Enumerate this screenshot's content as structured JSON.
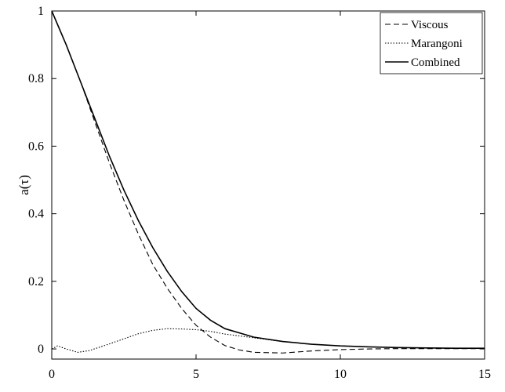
{
  "chart_data": {
    "type": "line",
    "title": "",
    "xlabel": "",
    "ylabel": "a(τ)",
    "xlim": [
      0,
      15
    ],
    "ylim": [
      -0.03,
      1.0
    ],
    "xticks": [
      "0",
      "5",
      "10",
      "15"
    ],
    "yticks": [
      "0",
      "0.2",
      "0.4",
      "0.6",
      "0.8",
      "1"
    ],
    "grid": false,
    "legend_position": "top-right",
    "series": [
      {
        "name": "Viscous",
        "style": "dashed",
        "color": "#000000",
        "points": [
          [
            0,
            1.0
          ],
          [
            0.5,
            0.9
          ],
          [
            1,
            0.79
          ],
          [
            1.5,
            0.67
          ],
          [
            2,
            0.55
          ],
          [
            2.5,
            0.44
          ],
          [
            3,
            0.34
          ],
          [
            3.5,
            0.25
          ],
          [
            4,
            0.18
          ],
          [
            4.5,
            0.12
          ],
          [
            5,
            0.07
          ],
          [
            5.5,
            0.035
          ],
          [
            6,
            0.01
          ],
          [
            6.5,
            -0.003
          ],
          [
            7,
            -0.01
          ],
          [
            8,
            -0.012
          ],
          [
            9,
            -0.006
          ],
          [
            10,
            -0.002
          ],
          [
            11,
            0.0
          ],
          [
            12,
            0.001
          ],
          [
            13,
            0.001
          ],
          [
            14,
            0.001
          ],
          [
            15,
            0.001
          ]
        ]
      },
      {
        "name": "Marangoni",
        "style": "dotted",
        "color": "#000000",
        "points": [
          [
            0,
            0.0
          ],
          [
            0.2,
            0.009
          ],
          [
            0.5,
            0.0
          ],
          [
            0.9,
            -0.01
          ],
          [
            1.3,
            -0.005
          ],
          [
            2,
            0.015
          ],
          [
            2.5,
            0.03
          ],
          [
            3,
            0.045
          ],
          [
            3.5,
            0.055
          ],
          [
            4,
            0.06
          ],
          [
            4.5,
            0.059
          ],
          [
            5,
            0.057
          ],
          [
            5.5,
            0.052
          ],
          [
            6,
            0.044
          ],
          [
            7,
            0.033
          ],
          [
            8,
            0.022
          ],
          [
            9,
            0.014
          ],
          [
            10,
            0.009
          ],
          [
            11,
            0.006
          ],
          [
            12,
            0.004
          ],
          [
            13,
            0.003
          ],
          [
            14,
            0.002
          ],
          [
            15,
            0.002
          ]
        ]
      },
      {
        "name": "Combined",
        "style": "solid",
        "color": "#000000",
        "points": [
          [
            0,
            1.0
          ],
          [
            0.5,
            0.9
          ],
          [
            1,
            0.79
          ],
          [
            1.5,
            0.68
          ],
          [
            2,
            0.57
          ],
          [
            2.5,
            0.47
          ],
          [
            3,
            0.38
          ],
          [
            3.5,
            0.3
          ],
          [
            4,
            0.23
          ],
          [
            4.5,
            0.17
          ],
          [
            5,
            0.12
          ],
          [
            5.5,
            0.085
          ],
          [
            6,
            0.06
          ],
          [
            7,
            0.035
          ],
          [
            8,
            0.022
          ],
          [
            9,
            0.014
          ],
          [
            10,
            0.009
          ],
          [
            11,
            0.006
          ],
          [
            12,
            0.004
          ],
          [
            13,
            0.003
          ],
          [
            14,
            0.002
          ],
          [
            15,
            0.002
          ]
        ]
      }
    ]
  }
}
